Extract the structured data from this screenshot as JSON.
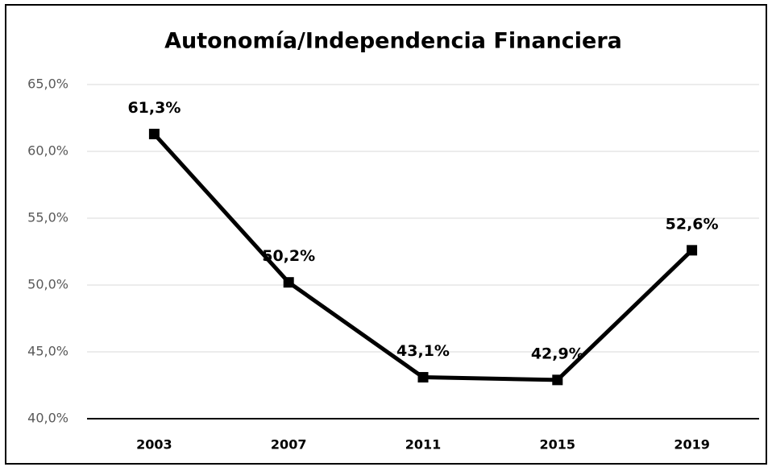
{
  "chart_data": {
    "type": "line",
    "title": "Autonomía/Independencia Financiera",
    "categories": [
      "2003",
      "2007",
      "2011",
      "2015",
      "2019"
    ],
    "values": [
      61.3,
      50.2,
      43.1,
      42.9,
      52.6
    ],
    "value_labels": [
      "61,3%",
      "50,2%",
      "43,1%",
      "42,9%",
      "52,6%"
    ],
    "color": "#000000",
    "ylim": [
      40,
      65
    ],
    "yticks": [
      {
        "value": 40,
        "label": "40,0%"
      },
      {
        "value": 45,
        "label": "45,0%"
      },
      {
        "value": 50,
        "label": "50,0%"
      },
      {
        "value": 55,
        "label": "55,0%"
      },
      {
        "value": 60,
        "label": "60,0%"
      },
      {
        "value": 65,
        "label": "65,0%"
      }
    ],
    "grid": true
  }
}
